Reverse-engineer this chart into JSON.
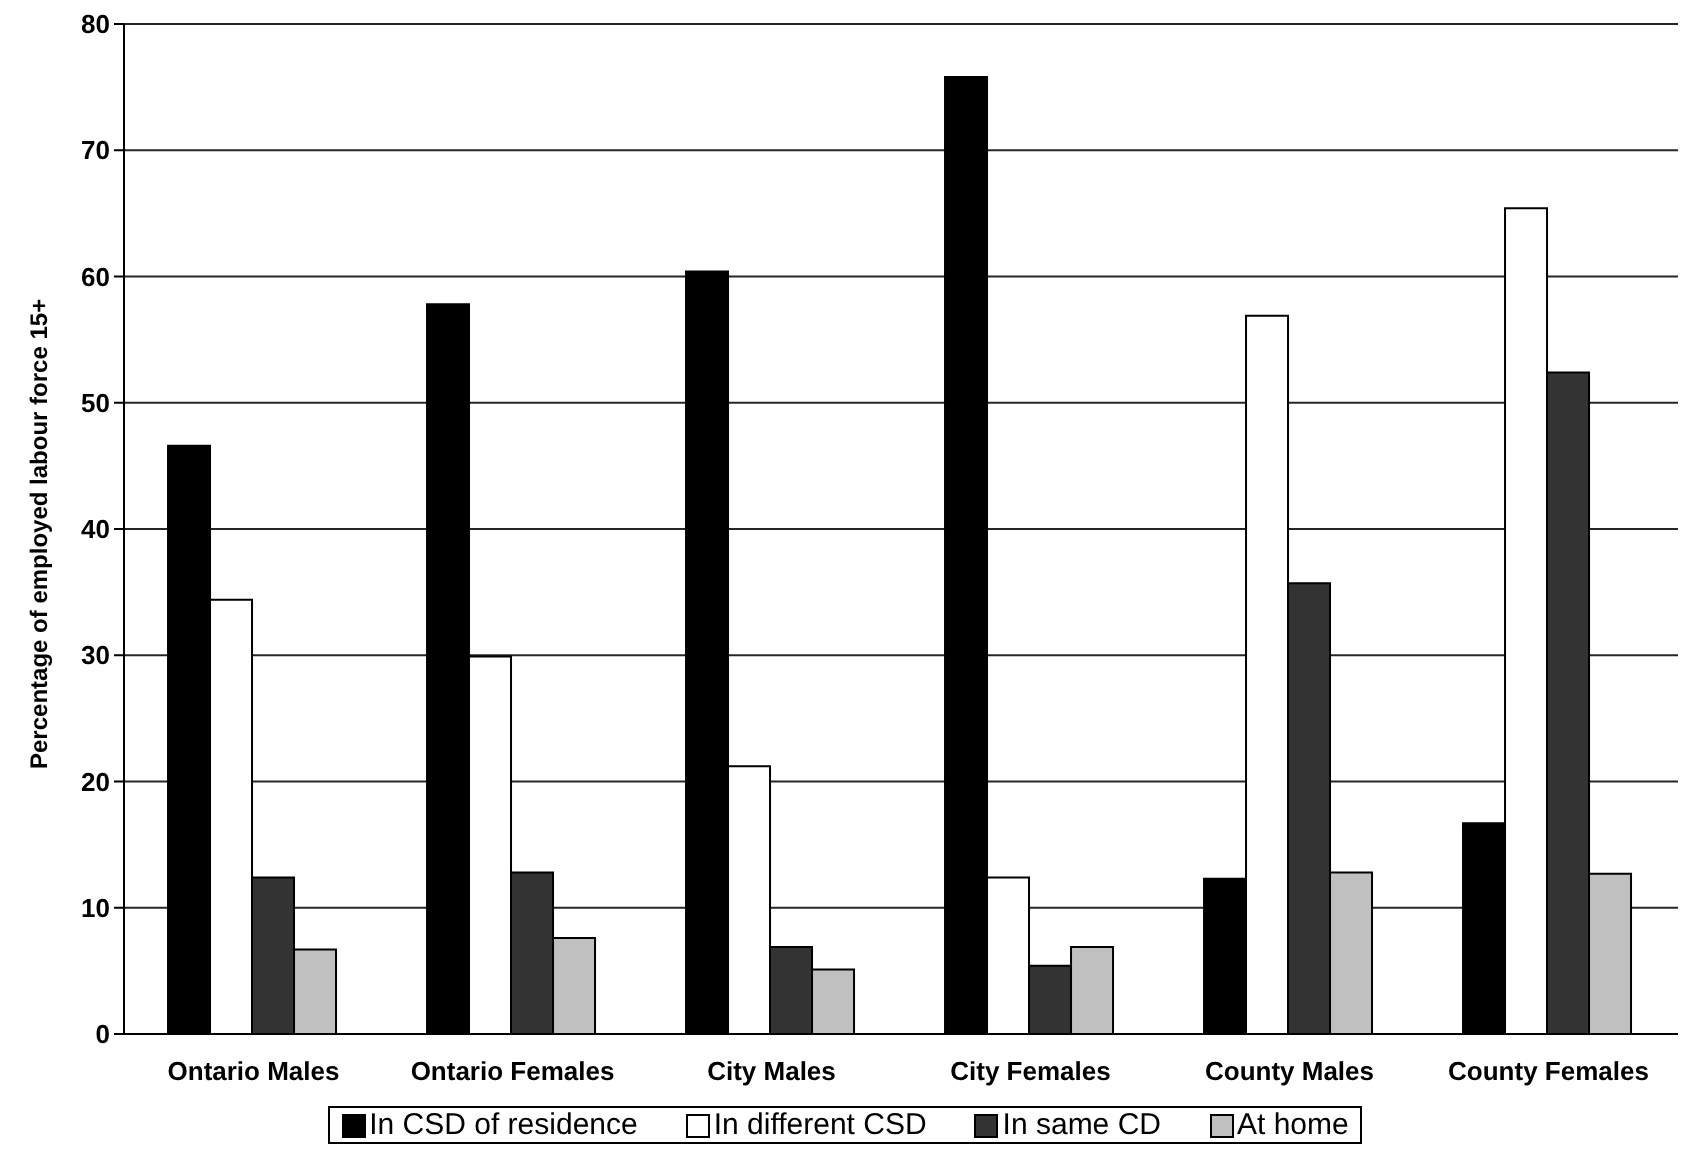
{
  "chart_data": {
    "type": "bar",
    "ylabel": "Percentage of employed labour force 15+",
    "categories": [
      "Ontario Males",
      "Ontario Females",
      "City Males",
      "City Females",
      "County Males",
      "County Females"
    ],
    "series": [
      {
        "name": "In CSD of residence",
        "color": "#000000",
        "values": [
          46.6,
          57.8,
          60.4,
          75.8,
          12.3,
          16.7
        ]
      },
      {
        "name": "In different CSD",
        "color": "#ffffff",
        "values": [
          34.4,
          29.9,
          21.2,
          12.4,
          56.9,
          65.4
        ]
      },
      {
        "name": "In same CD",
        "color": "#333333",
        "values": [
          12.4,
          12.8,
          6.9,
          5.4,
          35.7,
          52.4
        ]
      },
      {
        "name": "At home",
        "color": "#c0c0c0",
        "values": [
          6.7,
          7.6,
          5.1,
          6.9,
          12.8,
          12.7
        ]
      }
    ],
    "ylim": [
      0,
      80
    ],
    "yticks": [
      0,
      10,
      20,
      30,
      40,
      50,
      60,
      70,
      80
    ],
    "grid": "y",
    "legend": "bottom"
  }
}
